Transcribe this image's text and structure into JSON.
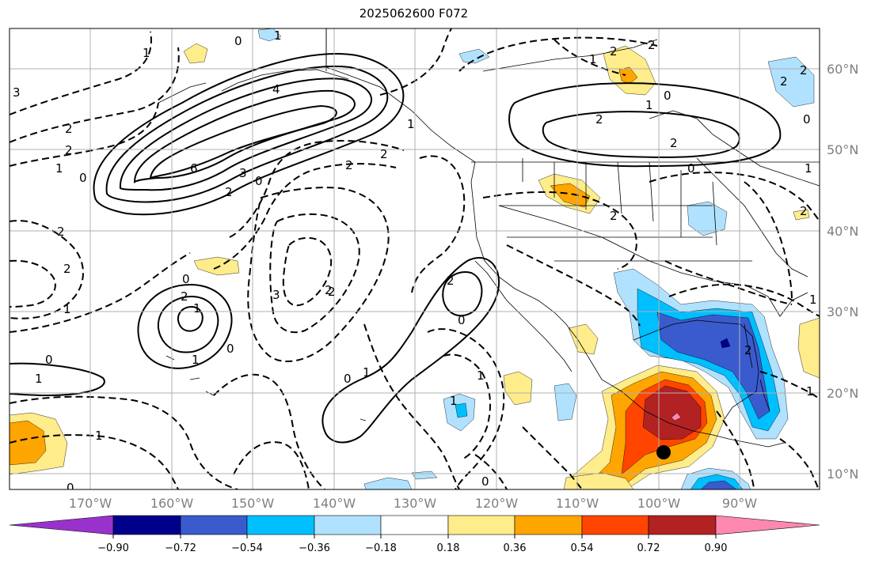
{
  "title": "2025062600 F072",
  "map": {
    "projection": "plate-carree",
    "lon_range": [
      -178,
      -81
    ],
    "lat_range": [
      8,
      65
    ],
    "lon_ticks": [
      "170°W",
      "160°W",
      "150°W",
      "140°W",
      "130°W",
      "120°W",
      "110°W",
      "100°W",
      "90°W"
    ],
    "lat_ticks": [
      "10°N",
      "20°N",
      "30°N",
      "40°N",
      "50°N",
      "60°N"
    ],
    "grid": true,
    "tick_color": "#7f7f7f"
  },
  "colorbar": {
    "tick_labels": [
      "−0.90",
      "−0.72",
      "−0.54",
      "−0.36",
      "−0.18",
      "0.18",
      "0.36",
      "0.54",
      "0.72",
      "0.90"
    ],
    "colors": [
      "#9932cc",
      "#00008b",
      "#3a5bcd",
      "#00bfff",
      "#b0e2ff",
      "#ffffff",
      "#ffec8b",
      "#ffa500",
      "#ff4500",
      "#b22222",
      "#ff88b0"
    ],
    "extend": "both"
  },
  "contour_labels": [
    "0",
    "1",
    "1",
    "2",
    "2",
    "1",
    "0",
    "3",
    "2",
    "2",
    "1",
    "0",
    "4",
    "6",
    "3",
    "2",
    "0",
    "2",
    "2",
    "1",
    "2",
    "0",
    "1",
    "2",
    "2",
    "2",
    "1",
    "0",
    "3",
    "2",
    "0",
    "1",
    "1",
    "0",
    "1",
    "2",
    "2",
    "0",
    "1",
    "0",
    "1",
    "1",
    "0",
    "1",
    "2",
    "1",
    "2",
    "2",
    "0",
    "1",
    "1",
    "2",
    "2",
    "2",
    "0"
  ]
}
